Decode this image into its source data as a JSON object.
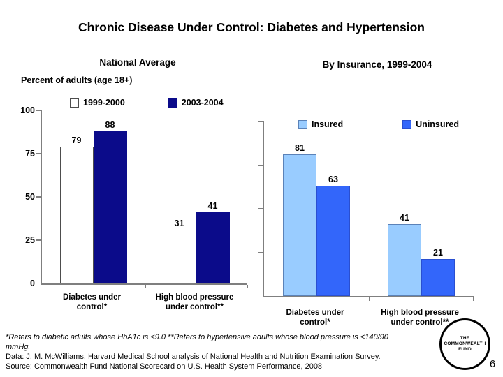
{
  "slide": {
    "title": "Chronic Disease Under Control: Diabetes and Hypertension",
    "page_number": "6",
    "logo": {
      "line1": "THE",
      "line2": "COMMONWEALTH",
      "line3": "FUND"
    },
    "notes": [
      "*Refers to diabetic adults whose HbA1c is <9.0 **Refers to hypertensive adults whose blood pressure is <140/90",
      "mmHg.",
      "Data: J. M. McWilliams, Harvard Medical School analysis of National Health and Nutrition Examination Survey.",
      "Source: Commonwealth Fund National Scorecard on U.S. Health System Performance, 2008"
    ]
  },
  "chart_data": [
    {
      "type": "bar",
      "title": "National Average",
      "ylabel": "Percent of adults (age 18+)",
      "ylim": [
        0,
        100
      ],
      "yticks": [
        0,
        25,
        50,
        75,
        100
      ],
      "show_ytick_labels": true,
      "grid": false,
      "legend_position": "top",
      "categories": [
        "Diabetes under control*",
        "High blood pressure under control**"
      ],
      "series": [
        {
          "name": "1999-2000",
          "color": "#ffffff",
          "border": "#4d4d4d",
          "values": [
            79,
            31
          ]
        },
        {
          "name": "2003-2004",
          "color": "#0b0b8a",
          "border": "#0b0b8a",
          "values": [
            88,
            41
          ]
        }
      ]
    },
    {
      "type": "bar",
      "title": "By Insurance, 1999-2004",
      "ylabel": "",
      "ylim": [
        0,
        100
      ],
      "yticks": [
        0,
        25,
        50,
        75,
        100
      ],
      "show_ytick_labels": false,
      "grid": false,
      "legend_position": "top",
      "categories": [
        "Diabetes under control*",
        "High blood pressure under control**"
      ],
      "series": [
        {
          "name": "Insured",
          "color": "#99ccff",
          "border": "#5b82b8",
          "values": [
            81,
            41
          ]
        },
        {
          "name": "Uninsured",
          "color": "#3366fa",
          "border": "#2a4fd0",
          "values": [
            63,
            21
          ]
        }
      ]
    }
  ]
}
